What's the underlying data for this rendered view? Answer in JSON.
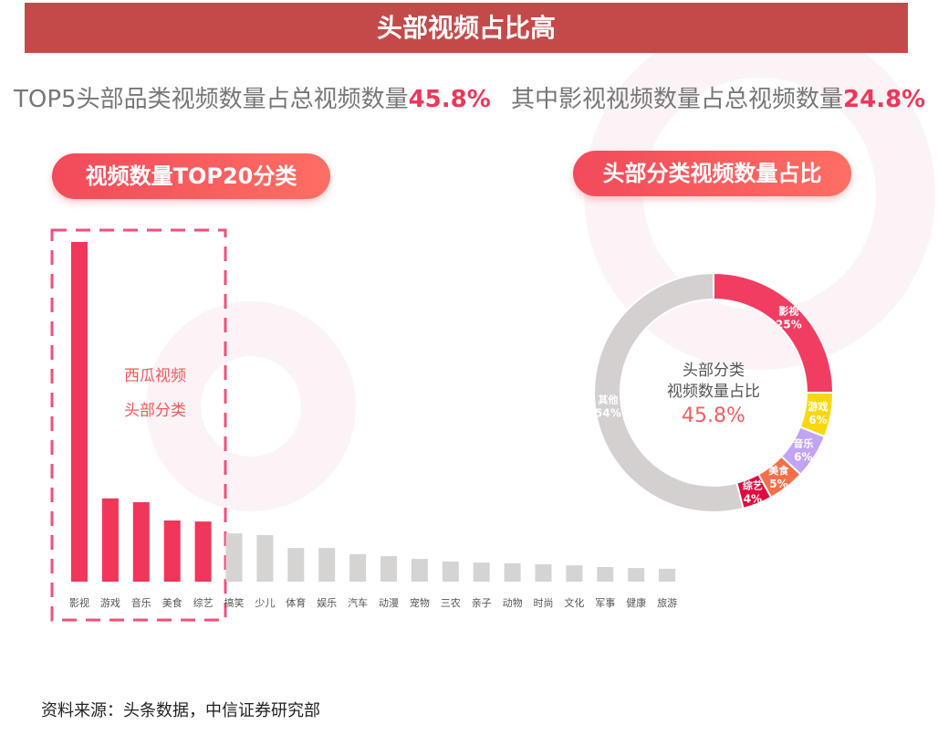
{
  "banner": "头部视频占比高",
  "subtitle": {
    "left_text": "TOP5头部品类视频数量占总视频数量",
    "left_value": "45.8%",
    "right_text": "其中影视视频数量占总视频数量",
    "right_value": "24.8%"
  },
  "source": "资料来源：头条数据，中信证券研究部",
  "chart_data": [
    {
      "type": "bar",
      "title": "视频数量TOP20分类",
      "categories": [
        "影视",
        "游戏",
        "音乐",
        "美食",
        "综艺",
        "搞笑",
        "少儿",
        "体育",
        "娱乐",
        "汽车",
        "动漫",
        "宠物",
        "三农",
        "亲子",
        "动物",
        "时尚",
        "文化",
        "军事",
        "健康",
        "旅游"
      ],
      "values": [
        100,
        24.5,
        23.4,
        18,
        17.7,
        14.2,
        13.7,
        9.9,
        9.9,
        8.1,
        7.5,
        6.7,
        5.9,
        5.6,
        5.4,
        5.1,
        4.8,
        4.3,
        4,
        3.8
      ],
      "highlight_count": 5,
      "annotation": [
        "西瓜视频",
        "头部分类"
      ],
      "xlabel": "",
      "ylabel": "",
      "colors": {
        "highlight": "#f0365a",
        "other": "#d6d3d3"
      }
    },
    {
      "type": "pie",
      "title": "头部分类视频数量占比",
      "center_label": [
        "头部分类",
        "视频数量占比"
      ],
      "center_value": "45.8%",
      "slices": [
        {
          "label": "影视",
          "value": 25,
          "text": "25%",
          "color": "#f23d62"
        },
        {
          "label": "游戏",
          "value": 6,
          "text": "6%",
          "color": "#f7d80e"
        },
        {
          "label": "音乐",
          "value": 6,
          "text": "6%",
          "color": "#c2a4f2"
        },
        {
          "label": "美食",
          "value": 5,
          "text": "5%",
          "color": "#f5704a"
        },
        {
          "label": "综艺",
          "value": 4,
          "text": "4%",
          "color": "#e3073f"
        },
        {
          "label": "其他",
          "value": 54,
          "text": "54%",
          "color": "#d5d0d0"
        }
      ]
    }
  ]
}
